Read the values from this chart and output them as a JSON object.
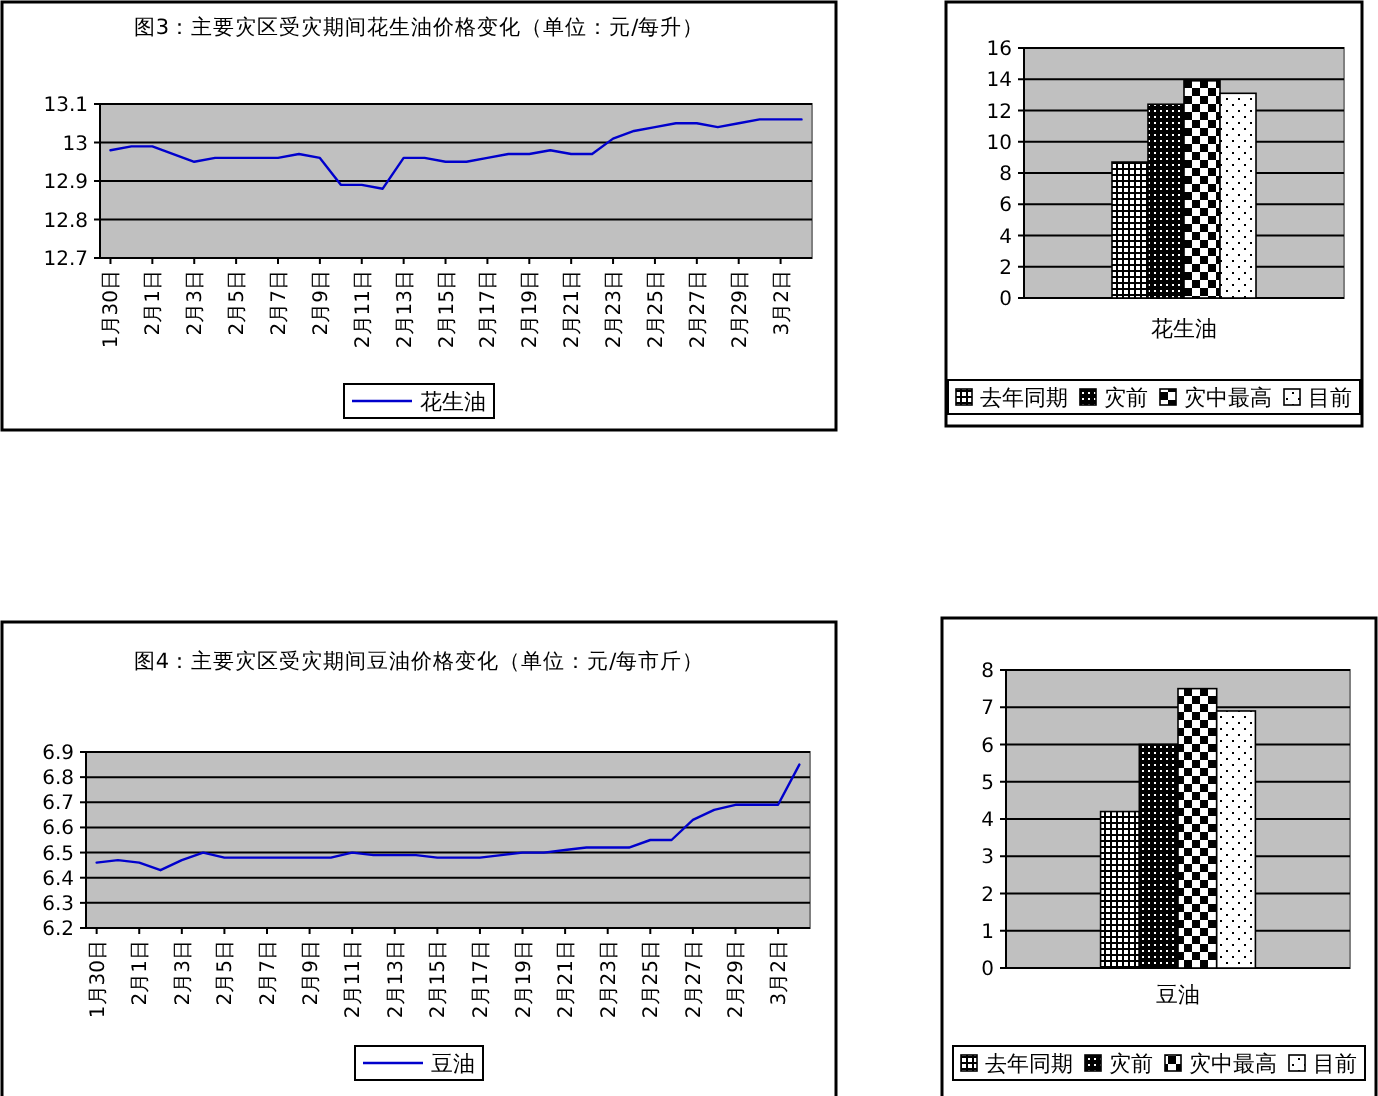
{
  "chart_data": [
    {
      "type": "line",
      "title": "图3：主要灾区受灾期间花生油价格变化（单位：元/每升）",
      "categories": [
        "1月30日",
        null,
        "2月1日",
        null,
        "2月3日",
        null,
        "2月5日",
        null,
        "2月7日",
        null,
        "2月9日",
        null,
        "2月11日",
        null,
        "2月13日",
        null,
        "2月15日",
        null,
        "2月17日",
        null,
        "2月19日",
        null,
        "2月21日",
        null,
        "2月23日",
        null,
        "2月25日",
        null,
        "2月27日",
        null,
        "2月29日",
        null,
        "3月2日",
        null
      ],
      "series": [
        {
          "name": "花生油",
          "color": "#0000cc",
          "values": [
            12.98,
            12.99,
            12.99,
            12.97,
            12.95,
            12.96,
            12.96,
            12.96,
            12.96,
            12.97,
            12.96,
            12.89,
            12.89,
            12.88,
            12.96,
            12.96,
            12.95,
            12.95,
            12.96,
            12.97,
            12.97,
            12.98,
            12.97,
            12.97,
            13.01,
            13.03,
            13.04,
            13.05,
            13.05,
            13.04,
            13.05,
            13.06,
            13.06,
            13.06
          ]
        }
      ],
      "ylim": [
        12.7,
        13.1
      ],
      "yticks": [
        12.7,
        12.8,
        12.9,
        13,
        13.1
      ],
      "grid": "y",
      "legend": "bottom"
    },
    {
      "type": "bar",
      "categories": [
        "花生油"
      ],
      "series": [
        {
          "name": "去年同期",
          "color": "#000000",
          "values": [
            8.7
          ]
        },
        {
          "name": "灾前",
          "color": "#000000",
          "values": [
            12.4
          ]
        },
        {
          "name": "灾中最高",
          "color": "#000000",
          "values": [
            13.9
          ]
        },
        {
          "name": "目前",
          "color": "#000000",
          "values": [
            13.1
          ]
        }
      ],
      "ylim": [
        0,
        16
      ],
      "yticks": [
        0,
        2,
        4,
        6,
        8,
        10,
        12,
        14,
        16
      ],
      "grid": "y",
      "legend": "bottom"
    },
    {
      "type": "line",
      "title": "图4：主要灾区受灾期间豆油价格变化（单位：元/每市斤）",
      "categories": [
        "1月30日",
        null,
        "2月1日",
        null,
        "2月3日",
        null,
        "2月5日",
        null,
        "2月7日",
        null,
        "2月9日",
        null,
        "2月11日",
        null,
        "2月13日",
        null,
        "2月15日",
        null,
        "2月17日",
        null,
        "2月19日",
        null,
        "2月21日",
        null,
        "2月23日",
        null,
        "2月25日",
        null,
        "2月27日",
        null,
        "2月29日",
        null,
        "3月2日",
        null
      ],
      "series": [
        {
          "name": "豆油",
          "color": "#0000cc",
          "values": [
            6.46,
            6.47,
            6.46,
            6.43,
            6.47,
            6.5,
            6.48,
            6.48,
            6.48,
            6.48,
            6.48,
            6.48,
            6.5,
            6.49,
            6.49,
            6.49,
            6.48,
            6.48,
            6.48,
            6.49,
            6.5,
            6.5,
            6.51,
            6.52,
            6.52,
            6.52,
            6.55,
            6.55,
            6.63,
            6.67,
            6.69,
            6.69,
            6.69,
            6.85
          ]
        }
      ],
      "ylim": [
        6.2,
        6.9
      ],
      "yticks": [
        6.2,
        6.3,
        6.4,
        6.5,
        6.6,
        6.7,
        6.8,
        6.9
      ],
      "grid": "y",
      "legend": "bottom"
    },
    {
      "type": "bar",
      "categories": [
        "豆油"
      ],
      "series": [
        {
          "name": "去年同期",
          "color": "#000000",
          "values": [
            4.2
          ]
        },
        {
          "name": "灾前",
          "color": "#000000",
          "values": [
            6.0
          ]
        },
        {
          "name": "灾中最高",
          "color": "#000000",
          "values": [
            7.5
          ]
        },
        {
          "name": "目前",
          "color": "#000000",
          "values": [
            6.9
          ]
        }
      ],
      "ylim": [
        0,
        8
      ],
      "yticks": [
        0,
        1,
        2,
        3,
        4,
        5,
        6,
        7,
        8
      ],
      "grid": "y",
      "legend": "bottom"
    }
  ]
}
